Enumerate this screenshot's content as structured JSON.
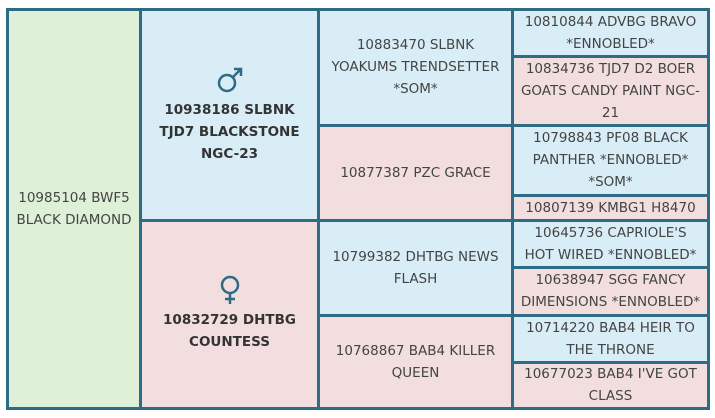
{
  "pedigree": {
    "subject": "10985104 BWF5 BLACK DIAMOND",
    "sire": {
      "name": "10938186 SLBNK TJD7 BLACKSTONE NGC-23",
      "sire": {
        "name": "10883470 SLBNK YOAKUMS TRENDSETTER *SOM*",
        "sire": "10810844 ADVBG BRAVO *ENNOBLED*",
        "dam": "10834736 TJD7 D2 BOER GOATS CANDY PAINT NGC-21"
      },
      "dam": {
        "name": "10877387 PZC GRACE",
        "sire": "10798843 PF08 BLACK PANTHER *ENNOBLED* *SOM*",
        "dam": "10807139 KMBG1 H8470"
      }
    },
    "dam": {
      "name": "10832729 DHTBG COUNTESS",
      "sire": {
        "name": "10799382 DHTBG NEWS FLASH",
        "sire": "10645736 CAPRIOLE'S HOT WIRED *ENNOBLED*",
        "dam": "10638947 SGG FANCY DIMENSIONS *ENNOBLED*"
      },
      "dam": {
        "name": "10768867 BAB4 KILLER QUEEN",
        "sire": "10714220 BAB4 HEIR TO THE THRONE",
        "dam": "10677023 BAB4 I'VE GOT CLASS"
      }
    }
  }
}
